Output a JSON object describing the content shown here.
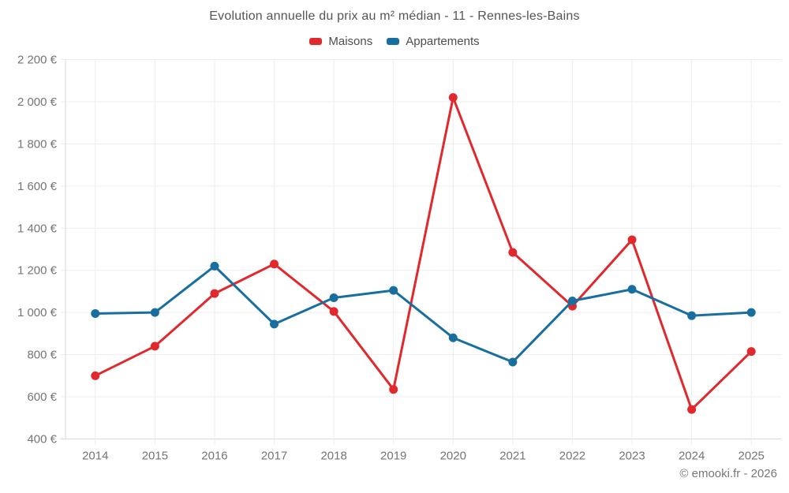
{
  "header": {
    "title": "Evolution annuelle du prix au m² médian - 11 - Rennes-les-Bains"
  },
  "footer": {
    "copyright": "© emooki.fr - 2026"
  },
  "chart_data": {
    "type": "line",
    "title": "Evolution annuelle du prix au m² médian - 11 - Rennes-les-Bains",
    "categories": [
      "2014",
      "2015",
      "2016",
      "2017",
      "2018",
      "2019",
      "2020",
      "2021",
      "2022",
      "2023",
      "2024",
      "2025"
    ],
    "series": [
      {
        "name": "Maisons",
        "color": "#e0282d",
        "values": [
          700,
          840,
          1090,
          1230,
          1005,
          635,
          2020,
          1285,
          1030,
          1345,
          540,
          815
        ]
      },
      {
        "name": "Appartements",
        "color": "#186f9f",
        "values": [
          995,
          1000,
          1220,
          945,
          1070,
          1105,
          880,
          765,
          1055,
          1110,
          985,
          1000
        ]
      }
    ],
    "y_ticks": {
      "values": [
        400,
        600,
        800,
        1000,
        1200,
        1400,
        1600,
        1800,
        2000,
        2200
      ],
      "labels": [
        "400 €",
        "600 €",
        "800 €",
        "1 000 €",
        "1 200 €",
        "1 400 €",
        "1 600 €",
        "1 800 €",
        "2 000 €",
        "2 200 €"
      ]
    },
    "ylim": [
      400,
      2200
    ],
    "xlabel": "",
    "ylabel": "",
    "grid": true,
    "legend_position": "top",
    "style": {
      "grid_color": "#ededed",
      "axis_color": "#d9d9d9",
      "tick_label_color": "#757575",
      "title_color": "#555555",
      "background": "#ffffff",
      "marker_radius": 5.5,
      "line_width": 3
    }
  }
}
